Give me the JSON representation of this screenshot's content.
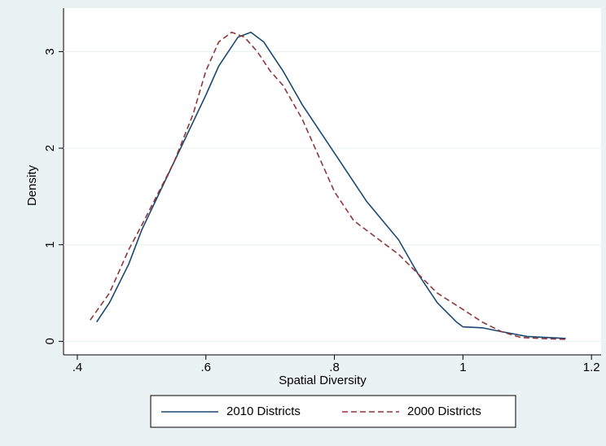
{
  "chart_data": {
    "type": "line",
    "x_label": "Spatial Diversity",
    "y_label": "Density",
    "xlim": [
      0.3785,
      1.215
    ],
    "ylim": [
      -0.14,
      3.45
    ],
    "xticks": [
      {
        "value": 0.4,
        "label": ".4"
      },
      {
        "value": 0.6,
        "label": ".6"
      },
      {
        "value": 0.8,
        "label": ".8"
      },
      1,
      1.2
    ],
    "yticks": [
      0,
      1,
      2,
      3
    ],
    "grid": true,
    "legend": "bottom",
    "series": [
      {
        "name": "2010 Districts",
        "color": "#1a476f",
        "dash": "solid",
        "x": [
          0.43,
          0.45,
          0.48,
          0.5,
          0.55,
          0.6,
          0.62,
          0.65,
          0.67,
          0.69,
          0.72,
          0.75,
          0.8,
          0.85,
          0.9,
          0.93,
          0.96,
          0.99,
          1.0,
          1.03,
          1.06,
          1.1,
          1.16
        ],
        "values": [
          0.2,
          0.4,
          0.8,
          1.15,
          1.85,
          2.55,
          2.85,
          3.15,
          3.2,
          3.1,
          2.8,
          2.45,
          1.95,
          1.45,
          1.05,
          0.7,
          0.4,
          0.2,
          0.15,
          0.14,
          0.1,
          0.05,
          0.03
        ]
      },
      {
        "name": "2000 Districts",
        "color": "#90353b",
        "dash": "dashed",
        "x": [
          0.42,
          0.45,
          0.48,
          0.5,
          0.55,
          0.58,
          0.6,
          0.62,
          0.64,
          0.66,
          0.68,
          0.7,
          0.72,
          0.75,
          0.78,
          0.8,
          0.83,
          0.86,
          0.9,
          0.93,
          0.96,
          1.0,
          1.03,
          1.06,
          1.09,
          1.12,
          1.16
        ],
        "values": [
          0.22,
          0.5,
          0.95,
          1.2,
          1.85,
          2.35,
          2.8,
          3.1,
          3.2,
          3.15,
          3.0,
          2.8,
          2.65,
          2.3,
          1.85,
          1.55,
          1.25,
          1.1,
          0.9,
          0.7,
          0.5,
          0.33,
          0.2,
          0.1,
          0.04,
          0.03,
          0.02
        ]
      }
    ]
  }
}
